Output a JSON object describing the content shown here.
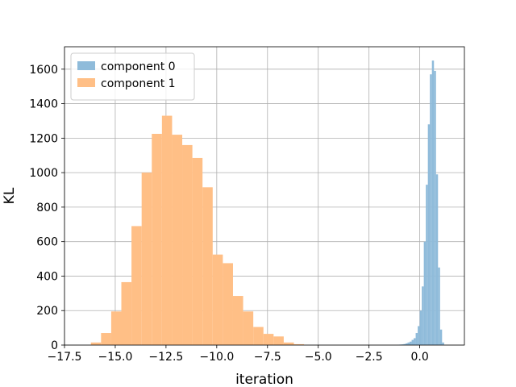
{
  "chart_data": {
    "type": "histogram",
    "xlabel": "iteration",
    "ylabel": "KL",
    "xlim": [
      -17.5,
      2.2
    ],
    "ylim": [
      0,
      1730
    ],
    "xticks": [
      -17.5,
      -15.0,
      -12.5,
      -10.0,
      -7.5,
      -5.0,
      -2.5,
      0.0
    ],
    "xtick_labels": [
      "−17.5",
      "−15.0",
      "−12.5",
      "−10.0",
      "−7.5",
      "−5.0",
      "−2.5",
      "0.0"
    ],
    "yticks": [
      0,
      200,
      400,
      600,
      800,
      1000,
      1200,
      1400,
      1600
    ],
    "ytick_labels": [
      "0",
      "200",
      "400",
      "600",
      "800",
      "1000",
      "1200",
      "1400",
      "1600"
    ],
    "grid": true,
    "legend_position": "top-left",
    "series": [
      {
        "name": "component 1",
        "color": "#ffbf86",
        "bin_edges": [
          -16.2,
          -15.7,
          -15.2,
          -14.7,
          -14.2,
          -13.7,
          -13.2,
          -12.7,
          -12.2,
          -11.7,
          -11.2,
          -10.7,
          -10.2,
          -9.7,
          -9.2,
          -8.7,
          -8.2,
          -7.7,
          -7.2,
          -6.7,
          -6.2,
          -5.7
        ],
        "counts": [
          15,
          70,
          195,
          365,
          690,
          1000,
          1225,
          1330,
          1220,
          1160,
          1085,
          915,
          525,
          475,
          285,
          195,
          105,
          65,
          50,
          15,
          5
        ]
      },
      {
        "name": "component 0",
        "color": "#8fbbda",
        "bin_edges": [
          -1.1,
          -1.0,
          -0.9,
          -0.8,
          -0.7,
          -0.6,
          -0.5,
          -0.4,
          -0.3,
          -0.2,
          -0.1,
          0.0,
          0.1,
          0.2,
          0.3,
          0.4,
          0.5,
          0.6,
          0.7,
          0.8,
          0.9,
          1.0,
          1.1,
          1.2
        ],
        "counts": [
          2,
          3,
          4,
          6,
          10,
          15,
          20,
          30,
          40,
          70,
          110,
          200,
          340,
          600,
          930,
          1280,
          1570,
          1650,
          1590,
          990,
          450,
          90,
          15
        ]
      }
    ],
    "legend": [
      {
        "label": "component 0",
        "color": "#8fbbda"
      },
      {
        "label": "component 1",
        "color": "#ffbf86"
      }
    ]
  }
}
